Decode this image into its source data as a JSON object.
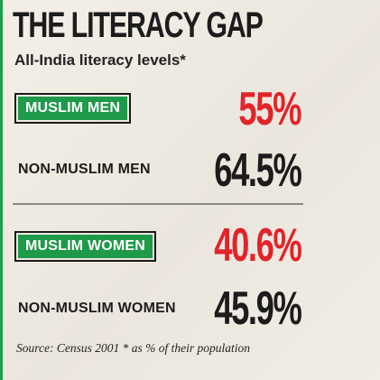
{
  "colors": {
    "accent_green": "#1e9a4a",
    "muslim_value_red": "#e2232a",
    "non_muslim_value_dark": "#1c1c1c"
  },
  "chart_data": {
    "type": "table",
    "title": "THE LITERACY GAP",
    "subtitle": "All-India literacy levels*",
    "categories": [
      "MUSLIM MEN",
      "NON-MUSLIM MEN",
      "MUSLIM WOMEN",
      "NON-MUSLIM WOMEN"
    ],
    "values": [
      55,
      64.5,
      40.6,
      45.9
    ],
    "value_labels": [
      "55%",
      "64.5%",
      "40.6%",
      "45.9%"
    ],
    "unit": "%",
    "source": "Source: Census 2001  * as % of their population"
  }
}
